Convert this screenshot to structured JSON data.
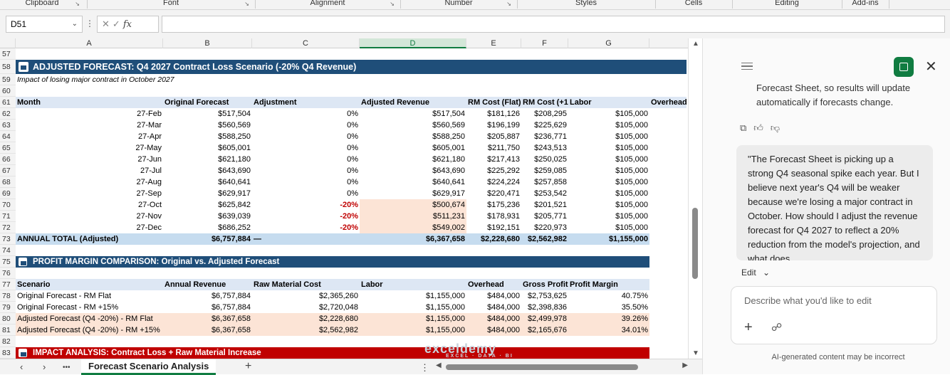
{
  "ribbon": {
    "groups": [
      "Clipboard",
      "Font",
      "Alignment",
      "Number",
      "Styles",
      "Cells",
      "Editing",
      "Add-ins"
    ]
  },
  "formula_bar": {
    "name_box": "D51",
    "fx": "fx",
    "formula": ""
  },
  "columns": [
    "A",
    "B",
    "C",
    "D",
    "E",
    "F",
    "G"
  ],
  "selected_column": "D",
  "rows": {
    "numbers": [
      "57",
      "58",
      "59",
      "60",
      "61",
      "62",
      "63",
      "64",
      "65",
      "66",
      "67",
      "68",
      "69",
      "70",
      "71",
      "72",
      "73",
      "74",
      "75",
      "76",
      "77",
      "78",
      "79",
      "80",
      "81",
      "82",
      "83"
    ]
  },
  "section1": {
    "title": "ADJUSTED FORECAST: Q4 2027 Contract Loss Scenario (-20% Q4 Revenue)",
    "subtitle": "Impact of losing major contract in October 2027",
    "headers": [
      "Month",
      "Original Forecast",
      "Adjustment",
      "Adjusted Revenue",
      "RM Cost (Flat)",
      "RM Cost (+1!",
      "Labor",
      "Overhead"
    ],
    "rows": [
      {
        "month": "27-Feb",
        "orig": "$517,504",
        "adj": "0%",
        "adjrev": "$517,504",
        "flat": "$181,126",
        "plus": "$208,295",
        "labor": "$105,000",
        "hl": false
      },
      {
        "month": "27-Mar",
        "orig": "$560,569",
        "adj": "0%",
        "adjrev": "$560,569",
        "flat": "$196,199",
        "plus": "$225,629",
        "labor": "$105,000",
        "hl": false
      },
      {
        "month": "27-Apr",
        "orig": "$588,250",
        "adj": "0%",
        "adjrev": "$588,250",
        "flat": "$205,887",
        "plus": "$236,771",
        "labor": "$105,000",
        "hl": false
      },
      {
        "month": "27-May",
        "orig": "$605,001",
        "adj": "0%",
        "adjrev": "$605,001",
        "flat": "$211,750",
        "plus": "$243,513",
        "labor": "$105,000",
        "hl": false
      },
      {
        "month": "27-Jun",
        "orig": "$621,180",
        "adj": "0%",
        "adjrev": "$621,180",
        "flat": "$217,413",
        "plus": "$250,025",
        "labor": "$105,000",
        "hl": false
      },
      {
        "month": "27-Jul",
        "orig": "$643,690",
        "adj": "0%",
        "adjrev": "$643,690",
        "flat": "$225,292",
        "plus": "$259,085",
        "labor": "$105,000",
        "hl": false
      },
      {
        "month": "27-Aug",
        "orig": "$640,641",
        "adj": "0%",
        "adjrev": "$640,641",
        "flat": "$224,224",
        "plus": "$257,858",
        "labor": "$105,000",
        "hl": false
      },
      {
        "month": "27-Sep",
        "orig": "$629,917",
        "adj": "0%",
        "adjrev": "$629,917",
        "flat": "$220,471",
        "plus": "$253,542",
        "labor": "$105,000",
        "hl": false
      },
      {
        "month": "27-Oct",
        "orig": "$625,842",
        "adj": "-20%",
        "adjrev": "$500,674",
        "flat": "$175,236",
        "plus": "$201,521",
        "labor": "$105,000",
        "hl": true
      },
      {
        "month": "27-Nov",
        "orig": "$639,039",
        "adj": "-20%",
        "adjrev": "$511,231",
        "flat": "$178,931",
        "plus": "$205,771",
        "labor": "$105,000",
        "hl": true
      },
      {
        "month": "27-Dec",
        "orig": "$686,252",
        "adj": "-20%",
        "adjrev": "$549,002",
        "flat": "$192,151",
        "plus": "$220,973",
        "labor": "$105,000",
        "hl": true
      }
    ],
    "total": {
      "label": "ANNUAL TOTAL (Adjusted)",
      "orig": "$6,757,884",
      "adj": "—",
      "adjrev": "$6,367,658",
      "flat": "$2,228,680",
      "plus": "$2,562,982",
      "labor": "$1,155,000"
    }
  },
  "section2": {
    "title": "PROFIT MARGIN COMPARISON: Original vs. Adjusted Forecast",
    "headers": [
      "Scenario",
      "Annual Revenue",
      "Raw Material Cost",
      "Labor",
      "Overhead",
      "Gross Profit",
      "Profit Margin"
    ],
    "rows": [
      {
        "scenario": "Original Forecast - RM Flat",
        "rev": "$6,757,884",
        "rm": "$2,365,260",
        "labor": "$1,155,000",
        "oh": "$484,000",
        "gp": "$2,753,625",
        "pm": "40.75%",
        "hl": false
      },
      {
        "scenario": "Original Forecast - RM +15%",
        "rev": "$6,757,884",
        "rm": "$2,720,048",
        "labor": "$1,155,000",
        "oh": "$484,000",
        "gp": "$2,398,836",
        "pm": "35.50%",
        "hl": false
      },
      {
        "scenario": "Adjusted Forecast (Q4 -20%) - RM Flat",
        "rev": "$6,367,658",
        "rm": "$2,228,680",
        "labor": "$1,155,000",
        "oh": "$484,000",
        "gp": "$2,499,978",
        "pm": "39.26%",
        "hl": true
      },
      {
        "scenario": "Adjusted Forecast (Q4 -20%) - RM +15%",
        "rev": "$6,367,658",
        "rm": "$2,562,982",
        "labor": "$1,155,000",
        "oh": "$484,000",
        "gp": "$2,165,676",
        "pm": "34.01%",
        "hl": true
      }
    ]
  },
  "section3": {
    "title": "IMPACT ANALYSIS: Contract Loss + Raw Material Increase"
  },
  "sheet_tabs": {
    "active": "Forecast Scenario Analysis",
    "dots": "•••"
  },
  "copilot": {
    "previous_text": "Forecast Sheet, so results will update automatically if forecasts change.",
    "user_message": "\"The Forecast Sheet is picking up a strong Q4 seasonal spike each year. But I believe next year's Q4 will be weaker because we're losing a major contract in October. How should I adjust the revenue forecast for Q4 2027 to reflect a 20% reduction from the model's projection, and what does",
    "mode_label": "Edit",
    "input_placeholder": "Describe what you'd like to edit",
    "disclaimer": "AI-generated content may be incorrect"
  },
  "watermark": {
    "brand": "exceldemy",
    "tag": "EXCEL · DATA · BI"
  },
  "colors": {
    "banner": "#1f4e79",
    "banner_red": "#c00000",
    "highlight": "#fce4d6",
    "header_row": "#dde7f4",
    "total_row": "#c6dcef",
    "accent": "#107c41"
  }
}
